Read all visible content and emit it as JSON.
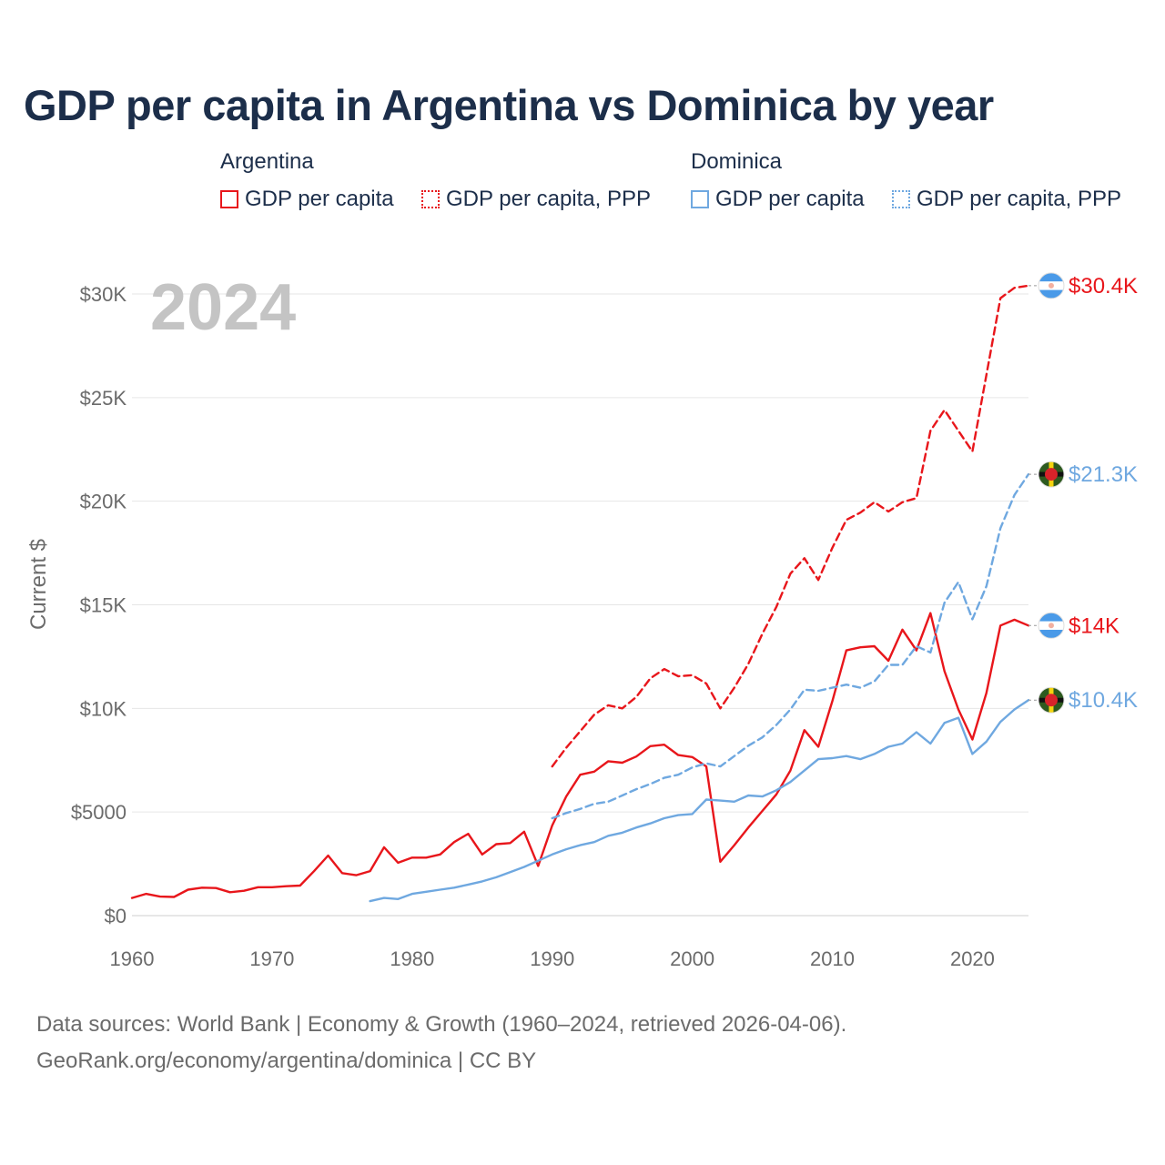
{
  "title": "GDP per capita in Argentina vs Dominica by year",
  "legend": {
    "groups": [
      {
        "name": "Argentina",
        "items": [
          {
            "label": "GDP per capita",
            "style": "solid",
            "color": "#e8161b"
          },
          {
            "label": "GDP per capita, PPP",
            "style": "dotted",
            "color": "#e8161b"
          }
        ]
      },
      {
        "name": "Dominica",
        "items": [
          {
            "label": "GDP per capita",
            "style": "solid",
            "color": "#6fa8e0"
          },
          {
            "label": "GDP per capita, PPP",
            "style": "dotted",
            "color": "#6fa8e0"
          }
        ]
      }
    ]
  },
  "source": {
    "line1": "Data sources: World Bank | Economy & Growth (1960–2024, retrieved 2026-04-06).",
    "line2": "GeoRank.org/economy/argentina/dominica | CC BY"
  },
  "chart_data": {
    "type": "line",
    "title": "GDP per capita in Argentina vs Dominica by year",
    "year_label": "2024",
    "xlabel": "",
    "ylabel": "Current $",
    "xlim": [
      1960,
      2024
    ],
    "ylim": [
      0,
      30000
    ],
    "x_ticks": [
      1960,
      1970,
      1980,
      1990,
      2000,
      2010,
      2020
    ],
    "y_ticks": [
      0,
      5000,
      10000,
      15000,
      20000,
      25000,
      30000
    ],
    "y_tick_labels": [
      "$0",
      "$5000",
      "$10K",
      "$15K",
      "$20K",
      "$25K",
      "$30K"
    ],
    "grid": true,
    "series": [
      {
        "name": "Argentina GDP per capita",
        "country": "Argentina",
        "color": "#e8161b",
        "dash": "solid",
        "end_label": "$14K",
        "x": [
          1960,
          1961,
          1962,
          1963,
          1964,
          1965,
          1966,
          1967,
          1968,
          1969,
          1970,
          1971,
          1972,
          1973,
          1974,
          1975,
          1976,
          1977,
          1978,
          1979,
          1980,
          1981,
          1982,
          1983,
          1984,
          1985,
          1986,
          1987,
          1988,
          1989,
          1990,
          1991,
          1992,
          1993,
          1994,
          1995,
          1996,
          1997,
          1998,
          1999,
          2000,
          2001,
          2002,
          2003,
          2004,
          2005,
          2006,
          2007,
          2008,
          2009,
          2010,
          2011,
          2012,
          2013,
          2014,
          2015,
          2016,
          2017,
          2018,
          2019,
          2020,
          2021,
          2022,
          2023,
          2024
        ],
        "values": [
          850,
          1050,
          920,
          900,
          1250,
          1350,
          1330,
          1130,
          1200,
          1370,
          1370,
          1420,
          1450,
          2150,
          2900,
          2050,
          1950,
          2150,
          3300,
          2550,
          2800,
          2800,
          2950,
          3550,
          3950,
          2950,
          3450,
          3500,
          4050,
          2400,
          4350,
          5750,
          6800,
          6950,
          7450,
          7380,
          7680,
          8180,
          8250,
          7750,
          7650,
          7200,
          2600,
          3400,
          4250,
          5050,
          5850,
          7000,
          8950,
          8150,
          10350,
          12800,
          12950,
          13000,
          12300,
          13800,
          12800,
          14600,
          11800,
          9950,
          8500,
          10750,
          14000,
          14280,
          14000
        ]
      },
      {
        "name": "Argentina GDP per capita, PPP",
        "country": "Argentina",
        "color": "#e8161b",
        "dash": "dashed",
        "end_label": "$30.4K",
        "x": [
          1990,
          1991,
          1992,
          1993,
          1994,
          1995,
          1996,
          1997,
          1998,
          1999,
          2000,
          2001,
          2002,
          2003,
          2004,
          2005,
          2006,
          2007,
          2008,
          2009,
          2010,
          2011,
          2012,
          2013,
          2014,
          2015,
          2016,
          2017,
          2018,
          2019,
          2020,
          2021,
          2022,
          2023,
          2024
        ],
        "values": [
          7200,
          8100,
          8900,
          9700,
          10150,
          10000,
          10550,
          11450,
          11900,
          11550,
          11600,
          11200,
          10000,
          11000,
          12150,
          13600,
          14900,
          16500,
          17250,
          16200,
          17750,
          19100,
          19450,
          19950,
          19500,
          19950,
          20150,
          23400,
          24400,
          23400,
          22400,
          26100,
          29800,
          30300,
          30400
        ]
      },
      {
        "name": "Dominica GDP per capita",
        "country": "Dominica",
        "color": "#6fa8e0",
        "dash": "solid",
        "end_label": "$10.4K",
        "x": [
          1977,
          1978,
          1979,
          1980,
          1981,
          1982,
          1983,
          1984,
          1985,
          1986,
          1987,
          1988,
          1989,
          1990,
          1991,
          1992,
          1993,
          1994,
          1995,
          1996,
          1997,
          1998,
          1999,
          2000,
          2001,
          2002,
          2003,
          2004,
          2005,
          2006,
          2007,
          2008,
          2009,
          2010,
          2011,
          2012,
          2013,
          2014,
          2015,
          2016,
          2017,
          2018,
          2019,
          2020,
          2021,
          2022,
          2023,
          2024
        ],
        "values": [
          700,
          850,
          800,
          1050,
          1150,
          1250,
          1350,
          1500,
          1650,
          1850,
          2100,
          2350,
          2650,
          2950,
          3200,
          3400,
          3550,
          3850,
          4000,
          4250,
          4450,
          4700,
          4850,
          4900,
          5600,
          5550,
          5500,
          5800,
          5750,
          6050,
          6450,
          7000,
          7550,
          7600,
          7700,
          7550,
          7800,
          8150,
          8300,
          8850,
          8300,
          9300,
          9550,
          7800,
          8400,
          9350,
          9950,
          10400
        ]
      },
      {
        "name": "Dominica GDP per capita, PPP",
        "country": "Dominica",
        "color": "#6fa8e0",
        "dash": "dashed",
        "end_label": "$21.3K",
        "x": [
          1990,
          1991,
          1992,
          1993,
          1994,
          1995,
          1996,
          1997,
          1998,
          1999,
          2000,
          2001,
          2002,
          2003,
          2004,
          2005,
          2006,
          2007,
          2008,
          2009,
          2010,
          2011,
          2012,
          2013,
          2014,
          2015,
          2016,
          2017,
          2018,
          2019,
          2020,
          2021,
          2022,
          2023,
          2024
        ],
        "values": [
          4700,
          4950,
          5150,
          5400,
          5500,
          5800,
          6100,
          6350,
          6650,
          6800,
          7150,
          7350,
          7200,
          7700,
          8200,
          8600,
          9200,
          9950,
          10900,
          10850,
          11000,
          11150,
          11000,
          11300,
          12100,
          12100,
          13000,
          12700,
          15100,
          16100,
          14300,
          15900,
          18700,
          20300,
          21300
        ]
      }
    ]
  }
}
